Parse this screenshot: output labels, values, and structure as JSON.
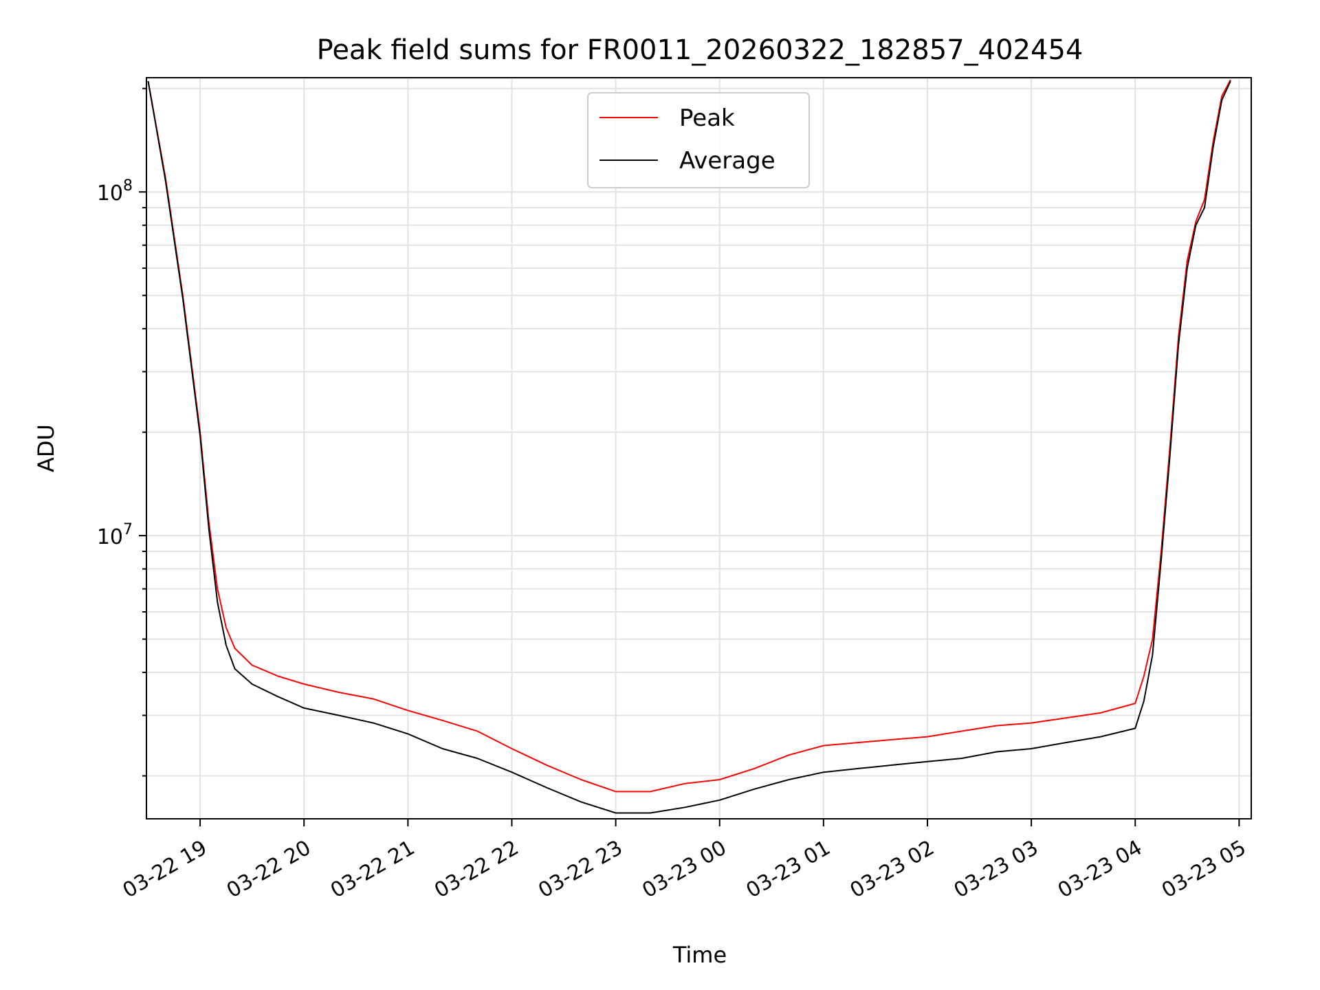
{
  "chart_data": {
    "type": "line",
    "title": "Peak field sums for FR0011_20260322_182857_402454",
    "xlabel": "Time",
    "ylabel": "ADU",
    "yscale": "log",
    "xlim": [
      "03-22 18:29",
      "03-23 05:07"
    ],
    "ylim": [
      1500000,
      215000000
    ],
    "grid": true,
    "legend_position": "top-center",
    "x_ticks": [
      "03-22 19",
      "03-22 20",
      "03-22 21",
      "03-22 22",
      "03-22 23",
      "03-23 00",
      "03-23 01",
      "03-23 02",
      "03-23 03",
      "03-23 04",
      "03-23 05"
    ],
    "y_ticks": [
      {
        "label_base": "10",
        "label_exp": "7",
        "value": 10000000
      },
      {
        "label_base": "10",
        "label_exp": "8",
        "value": 100000000
      }
    ],
    "x": [
      "03-22 18:30",
      "03-22 18:40",
      "03-22 18:50",
      "03-22 19:00",
      "03-22 19:05",
      "03-22 19:10",
      "03-22 19:15",
      "03-22 19:20",
      "03-22 19:30",
      "03-22 19:45",
      "03-22 20:00",
      "03-22 20:20",
      "03-22 20:40",
      "03-22 21:00",
      "03-22 21:20",
      "03-22 21:40",
      "03-22 22:00",
      "03-22 22:20",
      "03-22 22:40",
      "03-22 23:00",
      "03-22 23:20",
      "03-22 23:40",
      "03-23 00:00",
      "03-23 00:20",
      "03-23 00:40",
      "03-23 01:00",
      "03-23 01:20",
      "03-23 01:40",
      "03-23 02:00",
      "03-23 02:20",
      "03-23 02:40",
      "03-23 03:00",
      "03-23 03:20",
      "03-23 03:40",
      "03-23 04:00",
      "03-23 04:05",
      "03-23 04:10",
      "03-23 04:15",
      "03-23 04:20",
      "03-23 04:25",
      "03-23 04:30",
      "03-23 04:35",
      "03-23 04:40",
      "03-23 04:45",
      "03-23 04:50",
      "03-23 04:55"
    ],
    "series": [
      {
        "name": "Peak",
        "color": "#ff0000",
        "values": [
          210000000,
          110000000,
          50000000,
          20000000,
          11000000,
          7000000,
          5400000,
          4700000,
          4200000,
          3900000,
          3700000,
          3500000,
          3350000,
          3100000,
          2900000,
          2700000,
          2400000,
          2150000,
          1950000,
          1800000,
          1800000,
          1900000,
          1950000,
          2100000,
          2300000,
          2450000,
          2500000,
          2550000,
          2600000,
          2700000,
          2800000,
          2850000,
          2950000,
          3050000,
          3250000,
          3900000,
          5000000,
          9000000,
          18000000,
          38000000,
          63000000,
          82000000,
          95000000,
          140000000,
          190000000,
          212000000
        ]
      },
      {
        "name": "Average",
        "color": "#000000",
        "values": [
          210000000,
          108000000,
          49000000,
          19500000,
          10500000,
          6400000,
          4800000,
          4100000,
          3700000,
          3400000,
          3150000,
          3000000,
          2850000,
          2650000,
          2400000,
          2250000,
          2050000,
          1850000,
          1680000,
          1560000,
          1560000,
          1620000,
          1700000,
          1830000,
          1950000,
          2050000,
          2100000,
          2150000,
          2200000,
          2250000,
          2350000,
          2400000,
          2500000,
          2600000,
          2750000,
          3300000,
          4500000,
          8500000,
          17000000,
          36000000,
          60000000,
          80000000,
          90000000,
          135000000,
          185000000,
          210000000
        ]
      }
    ]
  }
}
